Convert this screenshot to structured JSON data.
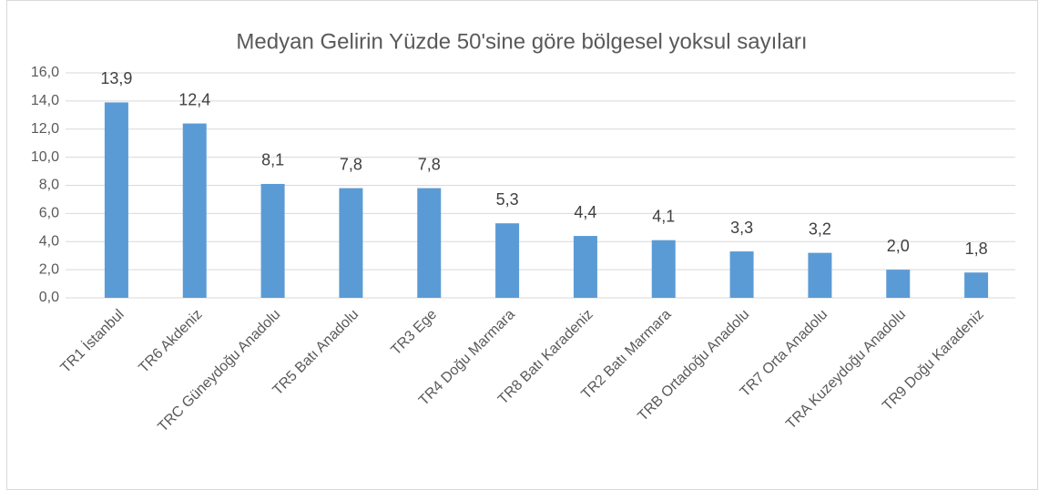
{
  "chart_data": {
    "type": "bar",
    "title": "Medyan Gelirin Yüzde 50'sine göre bölgesel yoksul sayıları",
    "categories": [
      "TR1 İstanbul",
      "TR6 Akdeniz",
      "TRC Güneydoğu Anadolu",
      "TR5 Batı Anadolu",
      "TR3 Ege",
      "TR4 Doğu Marmara",
      "TR8 Batı Karadeniz",
      "TR2 Batı Marmara",
      "TRB Ortadoğu Anadolu",
      "TR7 Orta Anadolu",
      "TRA Kuzeydoğu Anadolu",
      "TR9 Doğu Karadeniz"
    ],
    "values": [
      13.9,
      12.4,
      8.1,
      7.8,
      7.8,
      5.3,
      4.4,
      4.1,
      3.3,
      3.2,
      2.0,
      1.8
    ],
    "value_labels": [
      "13,9",
      "12,4",
      "8,1",
      "7,8",
      "7,8",
      "5,3",
      "4,4",
      "4,1",
      "3,3",
      "3,2",
      "2,0",
      "1,8"
    ],
    "color": "#5b9bd5",
    "ylim": [
      0,
      16
    ],
    "yticks": [
      {
        "value": 0,
        "label": "0,0"
      },
      {
        "value": 2,
        "label": "2,0"
      },
      {
        "value": 4,
        "label": "4,0"
      },
      {
        "value": 6,
        "label": "6,0"
      },
      {
        "value": 8,
        "label": "8,0"
      },
      {
        "value": 10,
        "label": "10,0"
      },
      {
        "value": 12,
        "label": "12,0"
      },
      {
        "value": 14,
        "label": "14,0"
      },
      {
        "value": 16,
        "label": "16,0"
      }
    ],
    "grid": true
  }
}
